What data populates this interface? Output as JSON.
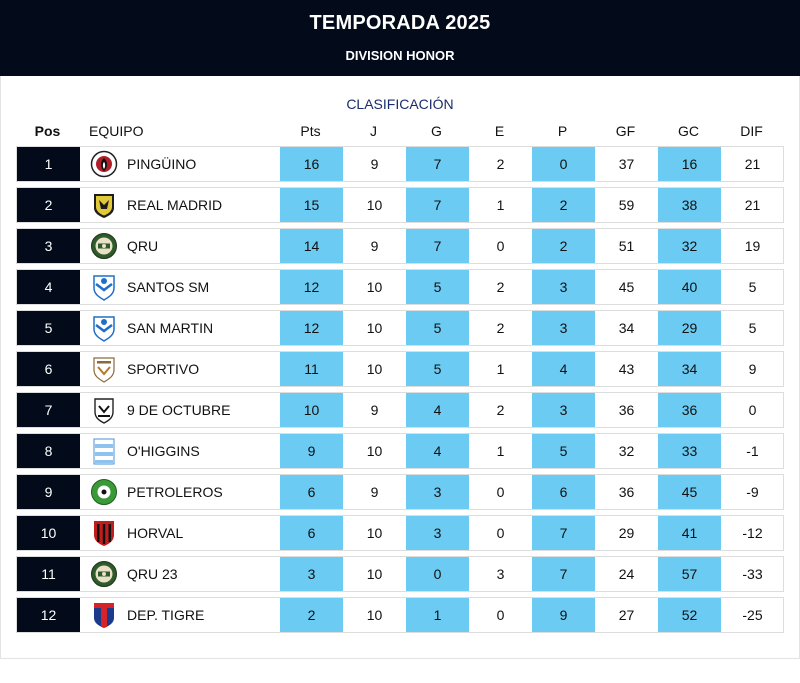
{
  "header": {
    "title": "TEMPORADA 2025",
    "subtitle": "DIVISION HONOR"
  },
  "section_title": "CLASIFICACIÓN",
  "columns": {
    "pos": "Pos",
    "team": "EQUIPO",
    "pts": "Pts",
    "j": "J",
    "g": "G",
    "e": "E",
    "p": "P",
    "gf": "GF",
    "gc": "GC",
    "dif": "DIF"
  },
  "colors": {
    "header_bg": "#030b1a",
    "highlight": "#6ccbf3",
    "title": "#1a2d6b"
  },
  "rows": [
    {
      "pos": "1",
      "team": "PINGÜINO",
      "badge": "pinguino-crest-icon",
      "pts": "16",
      "j": "9",
      "g": "7",
      "e": "2",
      "p": "0",
      "gf": "37",
      "gc": "16",
      "dif": "21"
    },
    {
      "pos": "2",
      "team": "REAL MADRID",
      "badge": "real-madrid-crest-icon",
      "pts": "15",
      "j": "10",
      "g": "7",
      "e": "1",
      "p": "2",
      "gf": "59",
      "gc": "38",
      "dif": "21"
    },
    {
      "pos": "3",
      "team": "QRU",
      "badge": "qru-crest-icon",
      "pts": "14",
      "j": "9",
      "g": "7",
      "e": "0",
      "p": "2",
      "gf": "51",
      "gc": "32",
      "dif": "19"
    },
    {
      "pos": "4",
      "team": "SANTOS SM",
      "badge": "santos-crest-icon",
      "pts": "12",
      "j": "10",
      "g": "5",
      "e": "2",
      "p": "3",
      "gf": "45",
      "gc": "40",
      "dif": "5"
    },
    {
      "pos": "5",
      "team": "SAN MARTIN",
      "badge": "san-martin-crest-icon",
      "pts": "12",
      "j": "10",
      "g": "5",
      "e": "2",
      "p": "3",
      "gf": "34",
      "gc": "29",
      "dif": "5"
    },
    {
      "pos": "6",
      "team": "SPORTIVO",
      "badge": "sportivo-crest-icon",
      "pts": "11",
      "j": "10",
      "g": "5",
      "e": "1",
      "p": "4",
      "gf": "43",
      "gc": "34",
      "dif": "9"
    },
    {
      "pos": "7",
      "team": "9 DE OCTUBRE",
      "badge": "9-de-octubre-crest-icon",
      "pts": "10",
      "j": "9",
      "g": "4",
      "e": "2",
      "p": "3",
      "gf": "36",
      "gc": "36",
      "dif": "0"
    },
    {
      "pos": "8",
      "team": "O'HIGGINS",
      "badge": "ohiggins-crest-icon",
      "pts": "9",
      "j": "10",
      "g": "4",
      "e": "1",
      "p": "5",
      "gf": "32",
      "gc": "33",
      "dif": "-1"
    },
    {
      "pos": "9",
      "team": "PETROLEROS",
      "badge": "petroleros-crest-icon",
      "pts": "6",
      "j": "9",
      "g": "3",
      "e": "0",
      "p": "6",
      "gf": "36",
      "gc": "45",
      "dif": "-9"
    },
    {
      "pos": "10",
      "team": "HORVAL",
      "badge": "horval-crest-icon",
      "pts": "6",
      "j": "10",
      "g": "3",
      "e": "0",
      "p": "7",
      "gf": "29",
      "gc": "41",
      "dif": "-12"
    },
    {
      "pos": "11",
      "team": "QRU 23",
      "badge": "qru-23-crest-icon",
      "pts": "3",
      "j": "10",
      "g": "0",
      "e": "3",
      "p": "7",
      "gf": "24",
      "gc": "57",
      "dif": "-33"
    },
    {
      "pos": "12",
      "team": "DEP. TIGRE",
      "badge": "dep-tigre-crest-icon",
      "pts": "2",
      "j": "10",
      "g": "1",
      "e": "0",
      "p": "9",
      "gf": "27",
      "gc": "52",
      "dif": "-25"
    }
  ]
}
